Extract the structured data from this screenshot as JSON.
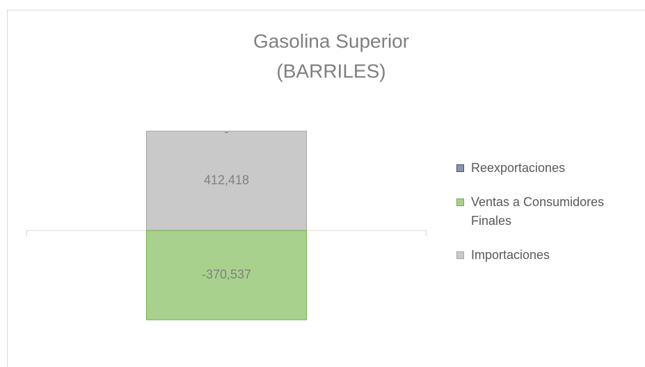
{
  "chart_data": {
    "type": "stacked_bar",
    "title": "Gasolina Superior",
    "subtitle": "(BARRILES)",
    "categories": [
      null
    ],
    "series": [
      {
        "name": "Importaciones",
        "color": "#c9c9c9",
        "values": [
          412418
        ],
        "value_labels": [
          "412,418"
        ]
      },
      {
        "name": "Ventas a Consumidores Finales",
        "color": "#a9d18e",
        "values": [
          -370537
        ],
        "value_labels": [
          "-370,537"
        ]
      },
      {
        "name": "Reexportaciones",
        "color": "#8496b0",
        "values": [
          0
        ],
        "value_labels": [
          "-"
        ]
      }
    ],
    "ylim": [
      -500000,
      500000
    ],
    "legend": "right"
  }
}
